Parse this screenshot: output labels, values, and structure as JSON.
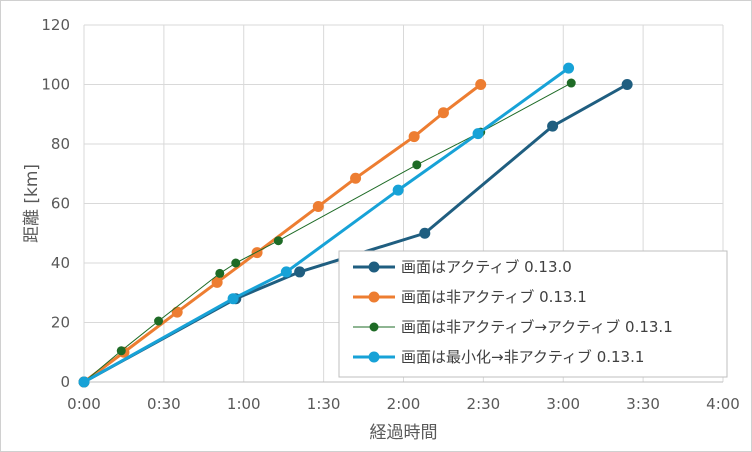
{
  "chart_data": {
    "type": "line",
    "title": "",
    "xlabel": "経過時間",
    "ylabel": "距離 [km]",
    "xlim": [
      0,
      240
    ],
    "ylim": [
      0,
      120
    ],
    "x_unit": "minutes",
    "x_ticks": [
      0,
      30,
      60,
      90,
      120,
      150,
      180,
      210,
      240
    ],
    "x_tick_labels": [
      "0:00",
      "0:30",
      "1:00",
      "1:30",
      "2:00",
      "2:30",
      "3:00",
      "3:30",
      "4:00"
    ],
    "y_ticks": [
      0,
      20,
      40,
      60,
      80,
      100,
      120
    ],
    "y_tick_labels": [
      "0",
      "20",
      "40",
      "60",
      "80",
      "100",
      "120"
    ],
    "grid": true,
    "legend_position": "bottom-right",
    "series": [
      {
        "name": "画面はアクティブ 0.13.0",
        "color": "#1f5e80",
        "line_width": 3,
        "marker_size": 5.5,
        "x": [
          0,
          57,
          81,
          128,
          176,
          204
        ],
        "y": [
          0,
          28,
          37,
          50,
          86,
          100
        ]
      },
      {
        "name": "画面は非アクティブ 0.13.1",
        "color": "#ed7d31",
        "line_width": 3,
        "marker_size": 5.5,
        "x": [
          0,
          15,
          35,
          50,
          65,
          88,
          102,
          124,
          135,
          149
        ],
        "y": [
          0,
          10,
          23.5,
          33.5,
          43.5,
          59,
          68.5,
          82.5,
          90.5,
          100
        ]
      },
      {
        "name": "画面は非アクティブ→アクティブ 0.13.1",
        "color": "#1e6b26",
        "line_width": 1,
        "marker_size": 4.5,
        "x": [
          0,
          14,
          28,
          51,
          57,
          73,
          125,
          149,
          183
        ],
        "y": [
          0,
          10.5,
          20.5,
          36.5,
          40,
          47.5,
          73,
          84,
          100.5
        ]
      },
      {
        "name": "画面は最小化→非アクティブ 0.13.1",
        "color": "#17a2d7",
        "line_width": 3,
        "marker_size": 5.5,
        "x": [
          0,
          56,
          76,
          118,
          148,
          182
        ],
        "y": [
          0,
          28,
          37,
          64.5,
          83.5,
          105.5
        ]
      }
    ]
  }
}
